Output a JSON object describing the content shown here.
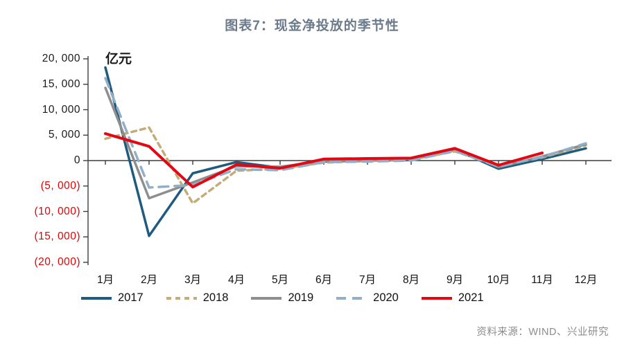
{
  "title": "图表7：现金净投放的季节性",
  "source": "资料来源：WIND、兴业研究",
  "colors": {
    "title": "#6C7B8B",
    "axis": "#3d3d3d",
    "tick_positive": "#1a1a1a",
    "tick_negative": "#e60000",
    "source_text": "#8c8c8c"
  },
  "y_axis": {
    "unit": "亿元",
    "ticks": [
      {
        "label": "20, 000",
        "value": 20000,
        "negative": false
      },
      {
        "label": "15, 000",
        "value": 15000,
        "negative": false
      },
      {
        "label": "10, 000",
        "value": 10000,
        "negative": false
      },
      {
        "label": "5, 000",
        "value": 5000,
        "negative": false
      },
      {
        "label": "0",
        "value": 0,
        "negative": false
      },
      {
        "label": "(5, 000)",
        "value": -5000,
        "negative": true
      },
      {
        "label": "(10, 000)",
        "value": -10000,
        "negative": true
      },
      {
        "label": "(15, 000)",
        "value": -15000,
        "negative": true
      },
      {
        "label": "(20, 000)",
        "value": -20000,
        "negative": true
      }
    ]
  },
  "chart_data": {
    "type": "line",
    "title": "图表7：现金净投放的季节性",
    "ylabel": "亿元",
    "ylim": [
      -20000,
      20000
    ],
    "ytick_step": 5000,
    "grid": false,
    "legend_position": "bottom",
    "categories": [
      "1月",
      "2月",
      "3月",
      "4月",
      "5月",
      "6月",
      "7月",
      "8月",
      "9月",
      "10月",
      "11月",
      "12月"
    ],
    "series": [
      {
        "name": "2017",
        "color": "#1F5B7E",
        "style": "solid",
        "values": [
          18300,
          -14800,
          -2500,
          -300,
          -1400,
          -200,
          0,
          100,
          2200,
          -1600,
          300,
          2400
        ]
      },
      {
        "name": "2018",
        "color": "#C2AC78",
        "style": "dashed-short",
        "values": [
          4300,
          6500,
          -8400,
          -2000,
          -1600,
          -400,
          -100,
          200,
          1800,
          -1000,
          600,
          3000
        ]
      },
      {
        "name": "2019",
        "color": "#8E8E8E",
        "style": "solid",
        "values": [
          14300,
          -7400,
          -4300,
          -1100,
          -1200,
          -100,
          100,
          300,
          2300,
          -1300,
          800,
          3200
        ]
      },
      {
        "name": "2020",
        "color": "#92AFC7",
        "style": "dashed-long",
        "values": [
          16200,
          -5300,
          -4800,
          -1700,
          -1900,
          -300,
          -200,
          0,
          1900,
          -1200,
          700,
          3400
        ]
      },
      {
        "name": "2021",
        "color": "#E30613",
        "style": "solid",
        "values": [
          5300,
          2800,
          -5200,
          -800,
          -1500,
          300,
          400,
          500,
          2400,
          -900,
          1500
        ]
      }
    ]
  }
}
